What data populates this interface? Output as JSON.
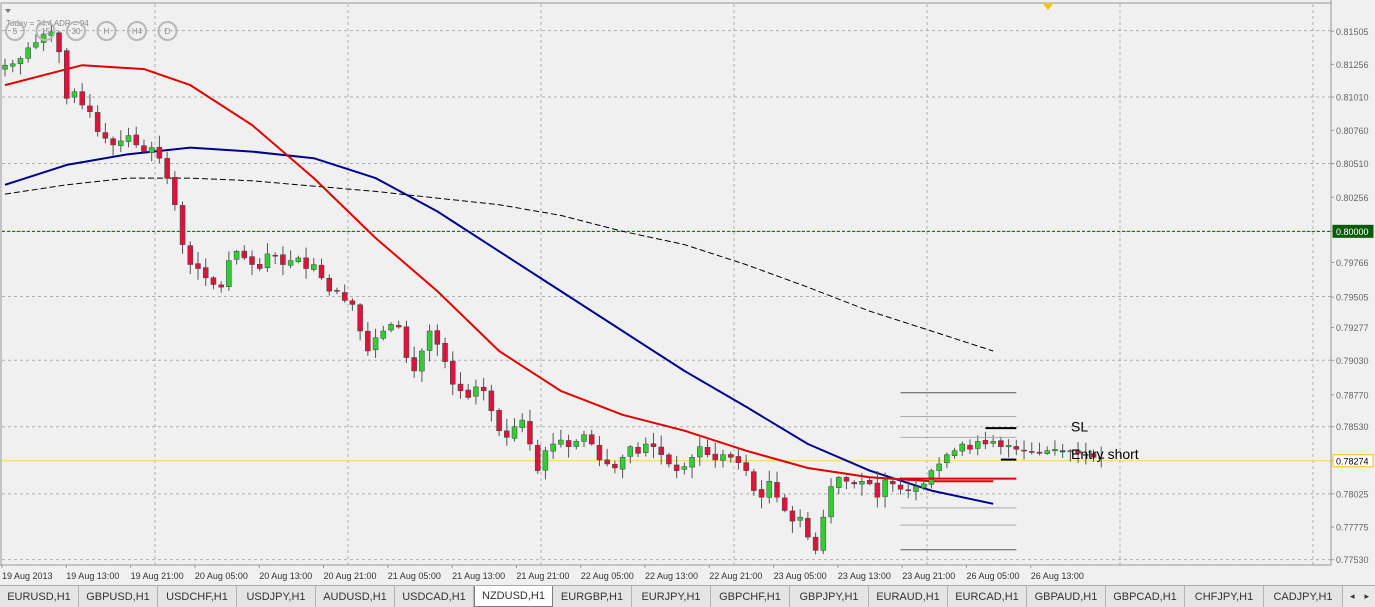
{
  "chart_data": {
    "type": "candlestick",
    "title": "",
    "symbol_timeframe": "NZDUSD,H1",
    "info_text": "Today = 24.4 ADR = 94",
    "timeframe_buttons": [
      "5",
      "15",
      "30",
      "H",
      "H4",
      "D"
    ],
    "y_axis": {
      "ylim": [
        0.7749,
        0.8171
      ],
      "tick_labels": [
        "0.81505",
        "0.81256",
        "0.81010",
        "0.80760",
        "0.80510",
        "0.80256",
        "0.80000",
        "0.79766",
        "0.79505",
        "0.79277",
        "0.79030",
        "0.78770",
        "0.78530",
        "0.78274",
        "0.78025",
        "0.77775",
        "0.77530"
      ],
      "tick_values": [
        0.81505,
        0.81256,
        0.8101,
        0.8076,
        0.8051,
        0.80256,
        0.8,
        0.79766,
        0.79505,
        0.79277,
        0.7903,
        0.7877,
        0.7853,
        0.78274,
        0.78025,
        0.77775,
        0.7753
      ],
      "highlight_labels": [
        "0.80000",
        "0.78274"
      ]
    },
    "x_axis": {
      "tick_labels": [
        "19 Aug 2013",
        "19 Aug 13:00",
        "19 Aug 21:00",
        "20 Aug 05:00",
        "20 Aug 13:00",
        "20 Aug 21:00",
        "21 Aug 05:00",
        "21 Aug 13:00",
        "21 Aug 21:00",
        "22 Aug 05:00",
        "22 Aug 13:00",
        "22 Aug 21:00",
        "23 Aug 05:00",
        "23 Aug 13:00",
        "23 Aug 21:00",
        "26 Aug 05:00",
        "26 Aug 13:00"
      ],
      "tick_bar_index": [
        0,
        8,
        16,
        24,
        32,
        40,
        48,
        56,
        64,
        72,
        80,
        88,
        96,
        104,
        112,
        120,
        128
      ]
    },
    "horizontal_lines": [
      {
        "value": 0.8,
        "style": "dashed",
        "color": "#006400"
      },
      {
        "value": 0.78274,
        "style": "solid",
        "color": "#ffd24d"
      }
    ],
    "candles": [],
    "candle_seed": {
      "closes": [
        0.8125,
        0.8126,
        0.813,
        0.8138,
        0.8142,
        0.8148,
        0.815,
        0.8135,
        0.81,
        0.8105,
        0.8095,
        0.809,
        0.8075,
        0.807,
        0.8065,
        0.8068,
        0.8072,
        0.8065,
        0.806,
        0.8063,
        0.8055,
        0.804,
        0.802,
        0.799,
        0.7975,
        0.7972,
        0.7965,
        0.796,
        0.7958,
        0.7978,
        0.7985,
        0.798,
        0.7975,
        0.7972,
        0.7983,
        0.7982,
        0.7975,
        0.7978,
        0.798,
        0.7972,
        0.7975,
        0.7965,
        0.7955,
        0.7955,
        0.7948,
        0.7945,
        0.7925,
        0.791,
        0.792,
        0.7925,
        0.793,
        0.7928,
        0.7905,
        0.7895,
        0.791,
        0.7925,
        0.7915,
        0.7902,
        0.7885,
        0.788,
        0.7875,
        0.7883,
        0.788,
        0.7865,
        0.785,
        0.7845,
        0.7853,
        0.7858,
        0.784,
        0.782,
        0.7835,
        0.784,
        0.7843,
        0.7838,
        0.7842,
        0.7847,
        0.784,
        0.7828,
        0.7825,
        0.7822,
        0.783,
        0.7838,
        0.7833,
        0.784,
        0.7838,
        0.7832,
        0.7825,
        0.782,
        0.7823,
        0.783,
        0.7838,
        0.7832,
        0.7828,
        0.7832,
        0.783,
        0.7826,
        0.782,
        0.7805,
        0.78,
        0.7812,
        0.78,
        0.779,
        0.7782,
        0.7785,
        0.777,
        0.776,
        0.7785,
        0.7808,
        0.7815,
        0.7812,
        0.781,
        0.7812,
        0.781,
        0.78,
        0.7813,
        0.781,
        0.7806,
        0.7805,
        0.7808,
        0.781,
        0.782,
        0.7825,
        0.7832,
        0.7835,
        0.784,
        0.7836,
        0.7842,
        0.784,
        0.7842,
        0.7838,
        0.7839,
        0.7836,
        0.7835,
        0.7834,
        0.7833,
        0.7835,
        0.7836,
        0.7834,
        0.7835,
        0.7833,
        0.7832,
        0.783,
        0.7829
      ]
    },
    "ma_red": {
      "color": "#e00000",
      "points": [
        [
          0,
          0.811
        ],
        [
          10,
          0.8125
        ],
        [
          18,
          0.8122
        ],
        [
          24,
          0.811
        ],
        [
          32,
          0.808
        ],
        [
          40,
          0.804
        ],
        [
          48,
          0.7995
        ],
        [
          56,
          0.7955
        ],
        [
          64,
          0.791
        ],
        [
          72,
          0.788
        ],
        [
          80,
          0.7862
        ],
        [
          88,
          0.785
        ],
        [
          96,
          0.7835
        ],
        [
          104,
          0.7822
        ],
        [
          112,
          0.7815
        ],
        [
          120,
          0.7812
        ],
        [
          128,
          0.7812
        ]
      ]
    },
    "ma_blue": {
      "color": "#00008b",
      "points": [
        [
          0,
          0.8035
        ],
        [
          8,
          0.805
        ],
        [
          16,
          0.8058
        ],
        [
          24,
          0.8063
        ],
        [
          32,
          0.806
        ],
        [
          40,
          0.8055
        ],
        [
          48,
          0.804
        ],
        [
          56,
          0.8015
        ],
        [
          64,
          0.7985
        ],
        [
          72,
          0.7955
        ],
        [
          80,
          0.7925
        ],
        [
          88,
          0.7895
        ],
        [
          96,
          0.7868
        ],
        [
          104,
          0.784
        ],
        [
          112,
          0.782
        ],
        [
          120,
          0.7805
        ],
        [
          128,
          0.7795
        ]
      ]
    },
    "ma_black": {
      "color": "#000000",
      "style": "dashed",
      "points": [
        [
          0,
          0.8028
        ],
        [
          8,
          0.8035
        ],
        [
          16,
          0.804
        ],
        [
          24,
          0.804
        ],
        [
          32,
          0.8038
        ],
        [
          40,
          0.8034
        ],
        [
          48,
          0.803
        ],
        [
          56,
          0.8025
        ],
        [
          64,
          0.802
        ],
        [
          72,
          0.8012
        ],
        [
          80,
          0.8
        ],
        [
          88,
          0.799
        ],
        [
          96,
          0.7975
        ],
        [
          104,
          0.7958
        ],
        [
          112,
          0.794
        ],
        [
          120,
          0.7925
        ],
        [
          128,
          0.791
        ]
      ]
    },
    "level_lines": [
      {
        "value": 0.78786,
        "x0_bar": 116,
        "x1_bar": 131,
        "color": "#555555",
        "width": 1
      },
      {
        "value": 0.78607,
        "x0_bar": 116,
        "x1_bar": 131,
        "color": "#aaaaaa",
        "width": 1
      },
      {
        "value": 0.7852,
        "x0_bar": 127,
        "x1_bar": 131,
        "color": "#000000",
        "width": 2
      },
      {
        "value": 0.7845,
        "x0_bar": 116,
        "x1_bar": 131,
        "color": "#aaaaaa",
        "width": 1
      },
      {
        "value": 0.78283,
        "x0_bar": 129,
        "x1_bar": 131,
        "color": "#000000",
        "width": 2
      },
      {
        "value": 0.7814,
        "x0_bar": 116,
        "x1_bar": 131,
        "color": "#e00000",
        "width": 2
      },
      {
        "value": 0.7792,
        "x0_bar": 116,
        "x1_bar": 131,
        "color": "#aaaaaa",
        "width": 1
      },
      {
        "value": 0.7779,
        "x0_bar": 116,
        "x1_bar": 131,
        "color": "#aaaaaa",
        "width": 1
      },
      {
        "value": 0.77605,
        "x0_bar": 116,
        "x1_bar": 131,
        "color": "#555555",
        "width": 1
      }
    ],
    "annotations": [
      {
        "text": "SL",
        "value": 0.7853
      },
      {
        "text": "Entry short",
        "value": 0.78325
      }
    ],
    "grid": true,
    "colors": {
      "bull": "#32cd32",
      "bear": "#dc143c",
      "wick": "#555555",
      "background": "#f0f0f0",
      "grid": "#b0b0b0",
      "ask_marker": "#ffc000"
    }
  },
  "tabs": {
    "items": [
      "EURUSD,H1",
      "GBPUSD,H1",
      "USDCHF,H1",
      "USDJPY,H1",
      "AUDUSD,H1",
      "USDCAD,H1",
      "NZDUSD,H1",
      "EURGBP,H1",
      "EURJPY,H1",
      "GBPCHF,H1",
      "GBPJPY,H1",
      "EURAUD,H1",
      "EURCAD,H1",
      "GBPAUD,H1",
      "GBPCAD,H1",
      "CHFJPY,H1",
      "CADJPY,H1"
    ],
    "active_index": 6,
    "prev_arrow": "◂",
    "next_arrow": "▸"
  }
}
